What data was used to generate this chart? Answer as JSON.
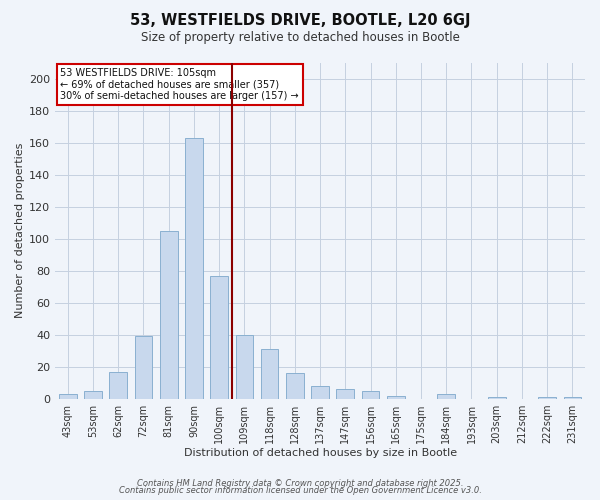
{
  "title": "53, WESTFIELDS DRIVE, BOOTLE, L20 6GJ",
  "subtitle": "Size of property relative to detached houses in Bootle",
  "xlabel": "Distribution of detached houses by size in Bootle",
  "ylabel": "Number of detached properties",
  "bar_color": "#c8d8ed",
  "bar_edge_color": "#8ab0d0",
  "categories": [
    "43sqm",
    "53sqm",
    "62sqm",
    "72sqm",
    "81sqm",
    "90sqm",
    "100sqm",
    "109sqm",
    "118sqm",
    "128sqm",
    "137sqm",
    "147sqm",
    "156sqm",
    "165sqm",
    "175sqm",
    "184sqm",
    "193sqm",
    "203sqm",
    "212sqm",
    "222sqm",
    "231sqm"
  ],
  "values": [
    3,
    5,
    17,
    39,
    105,
    163,
    77,
    40,
    31,
    16,
    8,
    6,
    5,
    2,
    0,
    3,
    0,
    1,
    0,
    1,
    1
  ],
  "ylim": [
    0,
    210
  ],
  "yticks": [
    0,
    20,
    40,
    60,
    80,
    100,
    120,
    140,
    160,
    180,
    200
  ],
  "marker_index": 6,
  "marker_line_color": "#8b0000",
  "annotation_line1": "53 WESTFIELDS DRIVE: 105sqm",
  "annotation_line2": "← 69% of detached houses are smaller (357)",
  "annotation_line3": "30% of semi-detached houses are larger (157) →",
  "background_color": "#f0f4fa",
  "grid_color": "#c5d0e0",
  "footer_line1": "Contains HM Land Registry data © Crown copyright and database right 2025.",
  "footer_line2": "Contains public sector information licensed under the Open Government Licence v3.0."
}
